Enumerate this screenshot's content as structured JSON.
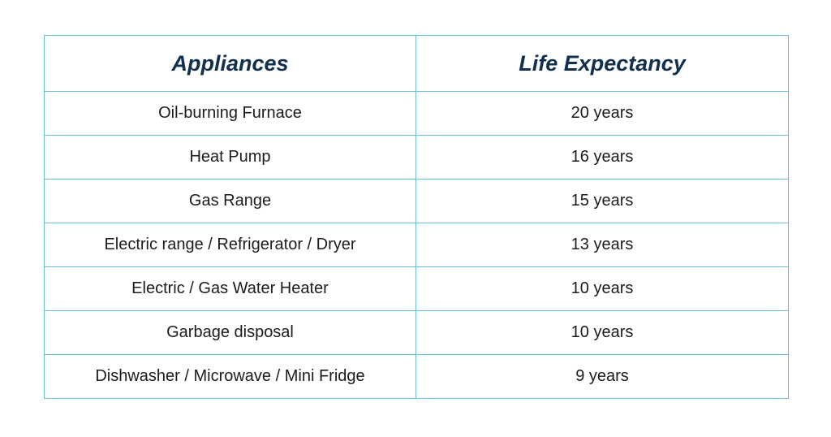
{
  "table": {
    "headers": [
      "Appliances",
      "Life Expectancy"
    ],
    "rows": [
      [
        "Oil-burning Furnace",
        "20 years"
      ],
      [
        "Heat Pump",
        "16 years"
      ],
      [
        "Gas Range",
        "15 years"
      ],
      [
        "Electric range / Refrigerator / Dryer",
        "13 years"
      ],
      [
        "Electric / Gas Water Heater",
        "10 years"
      ],
      [
        "Garbage disposal",
        "10 years"
      ],
      [
        "Dishwasher / Microwave / Mini Fridge",
        "9 years"
      ]
    ]
  },
  "colors": {
    "border": "#6cbfd3",
    "header_text": "#10304e",
    "body_text": "#1c1c1c"
  }
}
